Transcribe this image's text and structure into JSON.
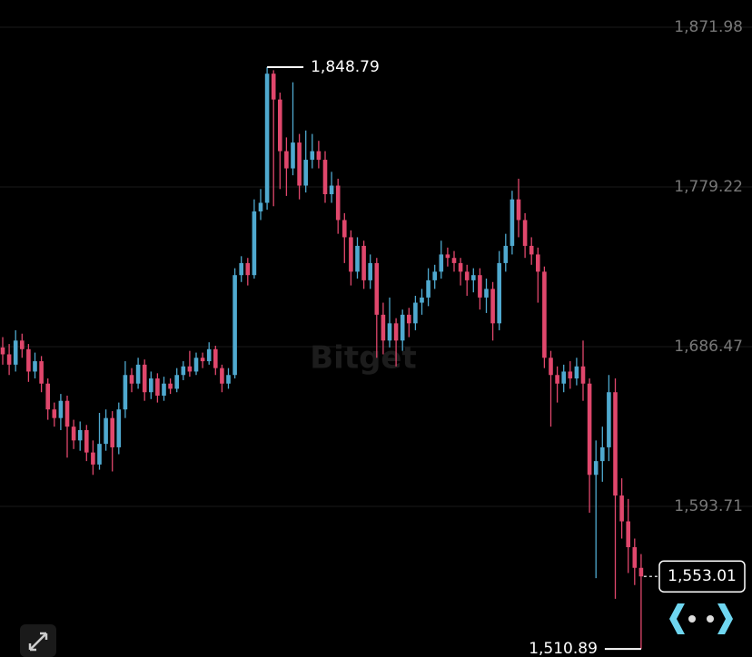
{
  "chart_data": {
    "type": "candlestick",
    "watermark": "Bitget",
    "open": [
      1686,
      1682,
      1676,
      1690,
      1685,
      1672,
      1678,
      1665,
      1650,
      1645,
      1655,
      1640,
      1632,
      1638,
      1625,
      1618,
      1630,
      1645,
      1628,
      1650,
      1670,
      1665,
      1676,
      1660,
      1668,
      1658,
      1665,
      1662,
      1670,
      1675,
      1672,
      1680,
      1678,
      1685,
      1674,
      1665,
      1670,
      1728,
      1735,
      1728,
      1765,
      1770,
      1845,
      1830,
      1800,
      1790,
      1805,
      1780,
      1795,
      1800,
      1795,
      1775,
      1780,
      1760,
      1750,
      1730,
      1745,
      1725,
      1735,
      1705,
      1690,
      1700,
      1690,
      1705,
      1700,
      1712,
      1715,
      1725,
      1730,
      1740,
      1738,
      1735,
      1730,
      1725,
      1728,
      1715,
      1720,
      1700,
      1735,
      1745,
      1772,
      1760,
      1745,
      1740,
      1730,
      1680,
      1670,
      1665,
      1672,
      1668,
      1675,
      1665,
      1612,
      1620,
      1628,
      1660,
      1600,
      1585,
      1570,
      1558
    ],
    "high": [
      1692,
      1688,
      1696,
      1694,
      1688,
      1683,
      1681,
      1668,
      1654,
      1659,
      1658,
      1644,
      1643,
      1641,
      1632,
      1648,
      1650,
      1649,
      1654,
      1678,
      1674,
      1680,
      1679,
      1672,
      1671,
      1669,
      1668,
      1674,
      1678,
      1684,
      1683,
      1683,
      1689,
      1687,
      1676,
      1674,
      1732,
      1739,
      1738,
      1772,
      1778,
      1848.79,
      1847,
      1834,
      1808,
      1840,
      1810,
      1812,
      1810,
      1806,
      1800,
      1788,
      1784,
      1764,
      1754,
      1750,
      1748,
      1740,
      1738,
      1712,
      1715,
      1703,
      1708,
      1709,
      1716,
      1720,
      1732,
      1734,
      1748,
      1744,
      1742,
      1738,
      1734,
      1732,
      1732,
      1726,
      1724,
      1742,
      1752,
      1777,
      1784,
      1764,
      1750,
      1744,
      1733,
      1684,
      1675,
      1676,
      1678,
      1680,
      1690,
      1668,
      1632,
      1640,
      1670,
      1668,
      1610,
      1598,
      1575,
      1566
    ],
    "low": [
      1676,
      1670,
      1672,
      1680,
      1666,
      1668,
      1660,
      1644,
      1640,
      1638,
      1622,
      1627,
      1626,
      1620,
      1612,
      1615,
      1626,
      1614,
      1624,
      1645,
      1660,
      1662,
      1655,
      1656,
      1654,
      1655,
      1659,
      1660,
      1667,
      1669,
      1670,
      1674,
      1676,
      1670,
      1660,
      1662,
      1668,
      1724,
      1722,
      1726,
      1760,
      1766,
      1768,
      1778,
      1774,
      1786,
      1772,
      1776,
      1790,
      1790,
      1770,
      1770,
      1752,
      1735,
      1722,
      1726,
      1720,
      1720,
      1680,
      1682,
      1686,
      1675,
      1684,
      1692,
      1696,
      1705,
      1710,
      1720,
      1726,
      1733,
      1730,
      1722,
      1716,
      1718,
      1708,
      1706,
      1690,
      1696,
      1730,
      1740,
      1750,
      1738,
      1734,
      1712,
      1674,
      1640,
      1654,
      1660,
      1662,
      1664,
      1655,
      1590,
      1552,
      1608,
      1620,
      1540,
      1575,
      1555,
      1548,
      1510.89
    ],
    "close": [
      1682,
      1676,
      1690,
      1685,
      1672,
      1678,
      1665,
      1650,
      1645,
      1655,
      1640,
      1632,
      1638,
      1625,
      1618,
      1630,
      1645,
      1628,
      1650,
      1670,
      1665,
      1676,
      1660,
      1668,
      1658,
      1665,
      1662,
      1670,
      1675,
      1672,
      1680,
      1678,
      1685,
      1674,
      1665,
      1670,
      1728,
      1735,
      1728,
      1765,
      1770,
      1845,
      1830,
      1800,
      1790,
      1805,
      1780,
      1795,
      1800,
      1795,
      1775,
      1780,
      1760,
      1750,
      1730,
      1745,
      1725,
      1735,
      1705,
      1690,
      1700,
      1690,
      1705,
      1700,
      1712,
      1715,
      1725,
      1730,
      1740,
      1738,
      1735,
      1730,
      1725,
      1728,
      1715,
      1720,
      1700,
      1735,
      1745,
      1772,
      1760,
      1745,
      1740,
      1730,
      1680,
      1670,
      1665,
      1672,
      1668,
      1675,
      1665,
      1612,
      1620,
      1628,
      1660,
      1600,
      1585,
      1570,
      1558,
      1553.01
    ],
    "up_color": "#4fa9cf",
    "down_color": "#e0476c",
    "ylim": [
      1506.22,
      1887.79
    ],
    "yticks": [
      {
        "value": 1871.98,
        "label": "1,871.98"
      },
      {
        "value": 1779.22,
        "label": "1,779.22"
      },
      {
        "value": 1686.47,
        "label": "1,686.47"
      },
      {
        "value": 1593.71,
        "label": "1,593.71"
      }
    ],
    "grid": true,
    "high_marker": {
      "value": 1848.79,
      "label": "1,848.79"
    },
    "low_marker": {
      "value": 1510.89,
      "label": "1,510.89"
    },
    "last_price": {
      "value": 1553.01,
      "label": "1,553.01"
    }
  }
}
